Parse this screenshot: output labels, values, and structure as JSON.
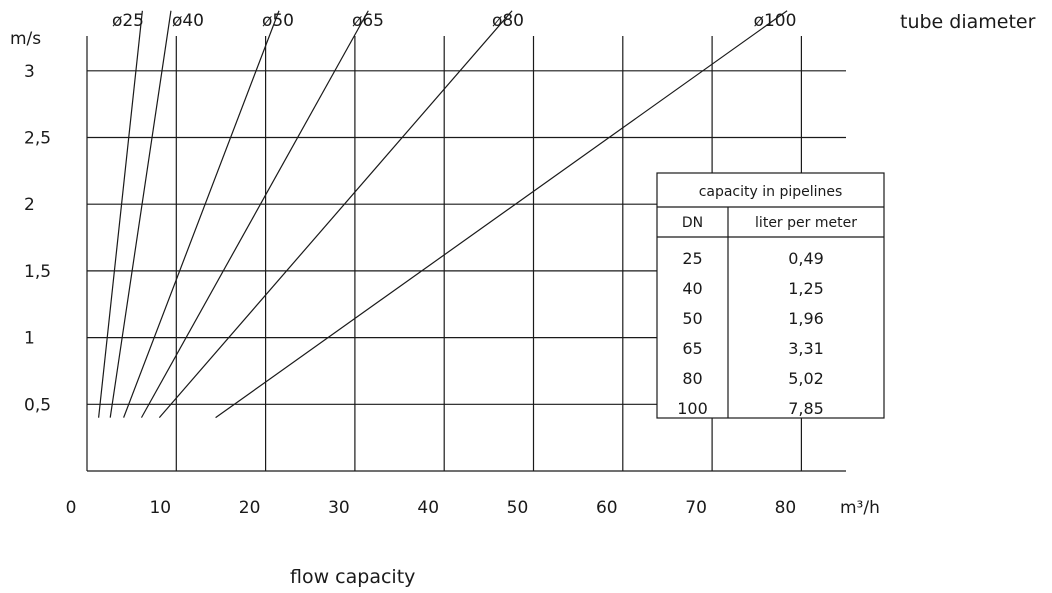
{
  "chart_data": {
    "type": "line",
    "xlabel": "flow capacity",
    "ylabel": "m/s",
    "x_unit": "m³/h",
    "legend_title": "tube diameter",
    "xlim": [
      0,
      86
    ],
    "ylim": [
      0,
      3.45
    ],
    "x_ticks": [
      0,
      10,
      20,
      30,
      40,
      50,
      60,
      70,
      80
    ],
    "x_tick_labels": [
      "0",
      "10",
      "20",
      "30",
      "40",
      "50",
      "60",
      "70",
      "80"
    ],
    "x_gridlines": [
      10,
      20,
      30,
      40,
      50,
      60,
      70,
      80
    ],
    "y_ticks": [
      0.5,
      1,
      1.5,
      2,
      2.5,
      3
    ],
    "y_tick_labels": [
      "0,5",
      "1",
      "1,5",
      "2",
      "2,5",
      "3"
    ],
    "series": [
      {
        "name": "ø25",
        "x": [
          1.3,
          6.2
        ],
        "y": [
          0.4,
          3.45
        ]
      },
      {
        "name": "ø40",
        "x": [
          2.6,
          9.4
        ],
        "y": [
          0.4,
          3.45
        ]
      },
      {
        "name": "ø50",
        "x": [
          4.1,
          21.5
        ],
        "y": [
          0.4,
          3.45
        ]
      },
      {
        "name": "ø65",
        "x": [
          6.1,
          31.5
        ],
        "y": [
          0.4,
          3.45
        ]
      },
      {
        "name": "ø80",
        "x": [
          8.1,
          47.6
        ],
        "y": [
          0.4,
          3.45
        ]
      },
      {
        "name": "ø100",
        "x": [
          14.4,
          78.4
        ],
        "y": [
          0.4,
          3.45
        ]
      }
    ],
    "table": {
      "title": "capacity in pipelines",
      "headers": [
        "DN",
        "liter per meter"
      ],
      "rows": [
        [
          "25",
          "0,49"
        ],
        [
          "40",
          "1,25"
        ],
        [
          "50",
          "1,96"
        ],
        [
          "65",
          "3,31"
        ],
        [
          "80",
          "5,02"
        ],
        [
          "100",
          "7,85"
        ]
      ]
    }
  }
}
